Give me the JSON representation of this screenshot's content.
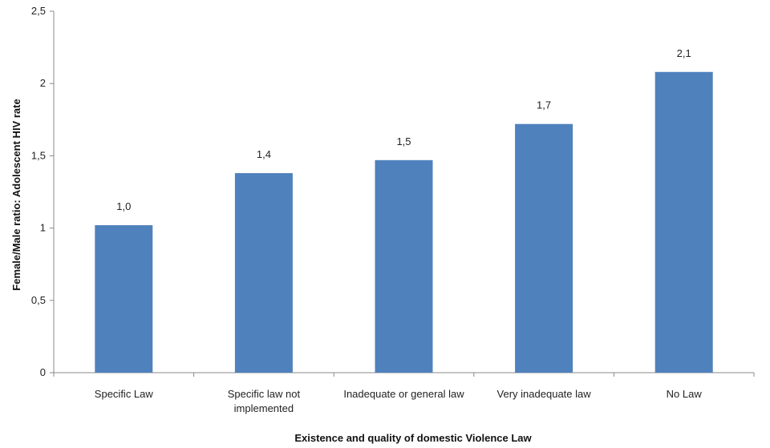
{
  "chart_data": {
    "type": "bar",
    "categories": [
      "Specific Law",
      "Specific law not implemented",
      "Inadequate or general law",
      "Very inadequate law",
      "No Law"
    ],
    "category_lines": [
      [
        "Specific Law"
      ],
      [
        "Specific law not",
        "implemented"
      ],
      [
        "Inadequate or general law"
      ],
      [
        "Very inadequate law"
      ],
      [
        "No Law"
      ]
    ],
    "values": [
      1.02,
      1.38,
      1.47,
      1.72,
      2.08
    ],
    "data_labels": [
      "1,0",
      "1,4",
      "1,5",
      "1,7",
      "2,1"
    ],
    "yticks": [
      0,
      0.5,
      1,
      1.5,
      2,
      2.5
    ],
    "ytick_labels": [
      "0",
      "0,5",
      "1",
      "1,5",
      "2",
      "2,5"
    ],
    "ylim": [
      0,
      2.5
    ],
    "xlabel": "Existence and quality of domestic Violence Law",
    "ylabel": "Female/Male ratio: Adolescent HIV rate",
    "bar_color": "#4f81bd",
    "grid": false,
    "legend": "none"
  }
}
